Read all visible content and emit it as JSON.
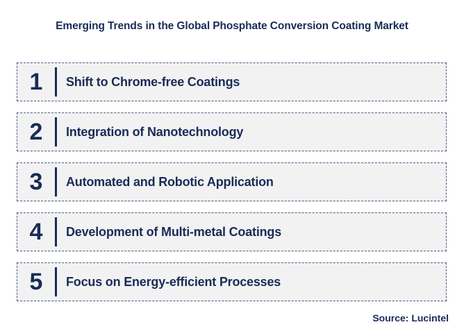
{
  "title": "Emerging Trends in the Global Phosphate Conversion Coating Market",
  "trends": [
    {
      "number": "1",
      "label": "Shift to Chrome-free Coatings"
    },
    {
      "number": "2",
      "label": "Integration of Nanotechnology"
    },
    {
      "number": "3",
      "label": "Automated and Robotic Application"
    },
    {
      "number": "4",
      "label": "Development of Multi-metal Coatings"
    },
    {
      "number": "5",
      "label": "Focus on Energy-efficient Processes"
    }
  ],
  "source": "Source: Lucintel",
  "colors": {
    "text": "#1a2b57",
    "box_background": "#f2f2f2",
    "box_border": "#4a5a86"
  }
}
